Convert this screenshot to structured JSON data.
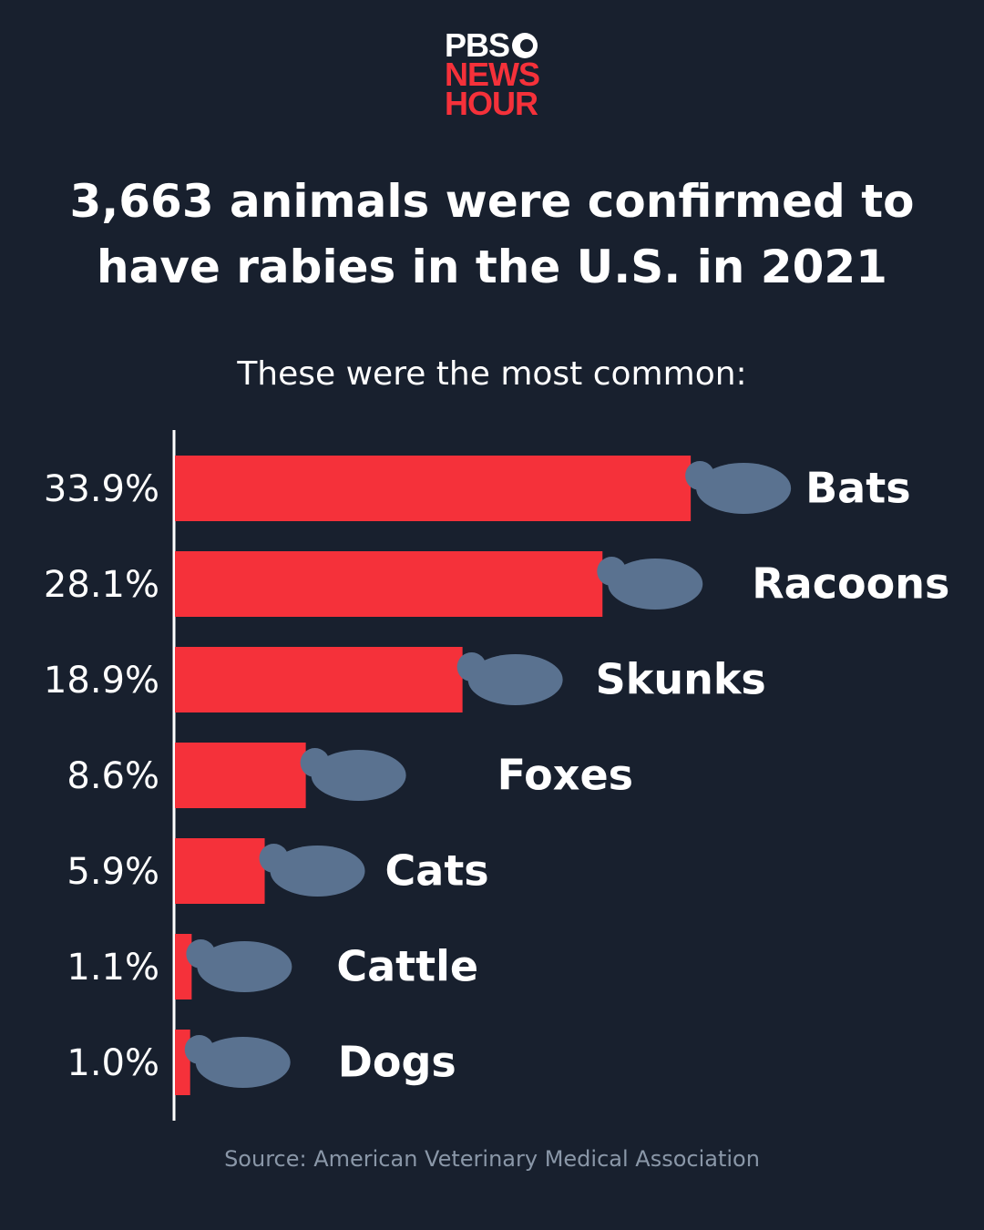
{
  "logo": {
    "line1": "PBS",
    "line2": "NEWS",
    "line3": "HOUR"
  },
  "chart_data": {
    "type": "bar",
    "orientation": "horizontal",
    "title": "3,663 animals were confirmed to have rabies in the U.S. in 2021",
    "subtitle": "These were the most common:",
    "categories": [
      "Bats",
      "Racoons",
      "Skunks",
      "Foxes",
      "Cats",
      "Cattle",
      "Dogs"
    ],
    "values": [
      33.9,
      28.1,
      18.9,
      8.6,
      5.9,
      1.1,
      1.0
    ],
    "value_labels": [
      "33.9%",
      "28.1%",
      "18.9%",
      "8.6%",
      "5.9%",
      "1.1%",
      "1.0%"
    ],
    "color": "#f5313a",
    "source": "Source: American Veterinary Medical Association"
  }
}
